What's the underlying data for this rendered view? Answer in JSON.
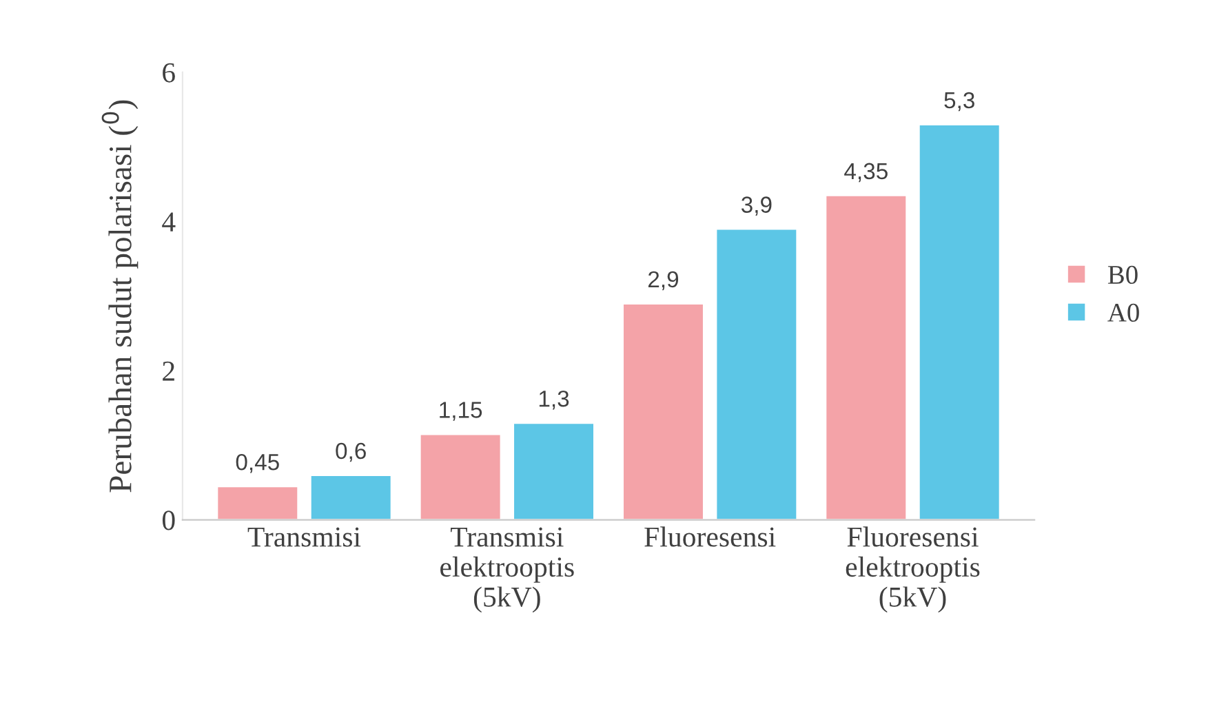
{
  "chart_data": {
    "type": "bar",
    "ylabel": "Perubahan sudut polarisasi ($^{0}$)",
    "categories": [
      "Transmisi",
      "Transmisi\nelektrooptis\n(5kV)",
      "Fluoresensi",
      "Fluoresensi\nelektrooptis\n(5kV)"
    ],
    "series": [
      {
        "name": "B0",
        "color": "#f4a3a8",
        "values": [
          0.45,
          1.15,
          2.9,
          4.35
        ],
        "value_labels": [
          "0,45",
          "1,15",
          "2,9",
          "4,35"
        ]
      },
      {
        "name": "A0",
        "color": "#5cc6e6",
        "values": [
          0.6,
          1.3,
          3.9,
          5.3
        ],
        "value_labels": [
          "0,6",
          "1,3",
          "3,9",
          "5,3"
        ]
      }
    ],
    "ylim": [
      0,
      6
    ],
    "yticks": [
      0,
      2,
      4,
      6
    ],
    "grid": false,
    "legend": "right"
  }
}
